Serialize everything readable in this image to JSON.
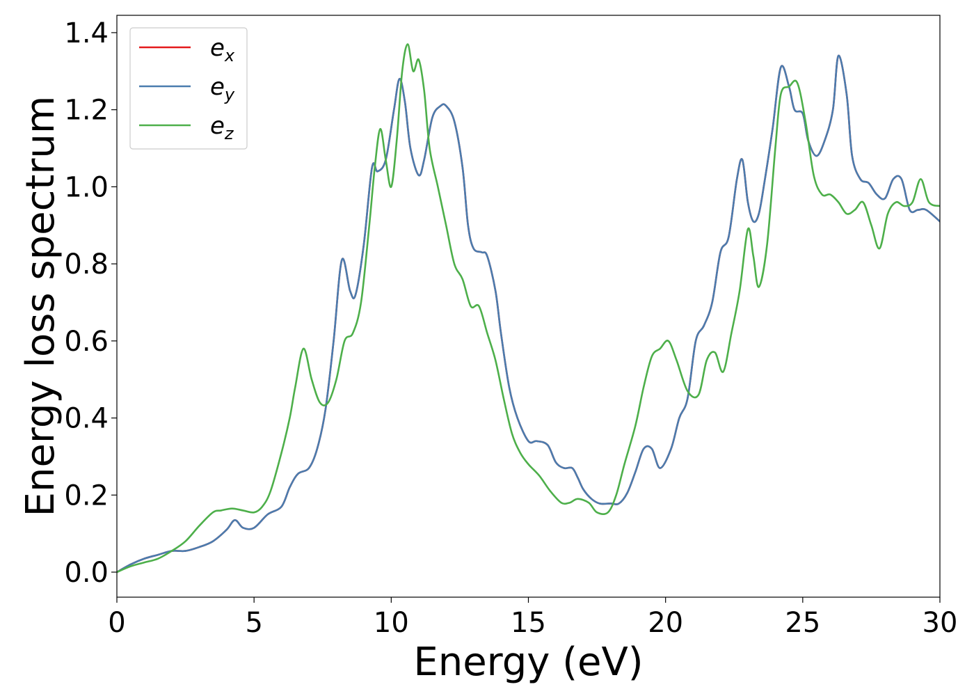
{
  "chart_data": {
    "type": "line",
    "title": "",
    "xlabel": "Energy (eV)",
    "ylabel": "Energy loss spectrum",
    "xlim": [
      0,
      30
    ],
    "ylim": [
      -0.065,
      1.445
    ],
    "xticks": [
      0,
      5,
      10,
      15,
      20,
      25,
      30
    ],
    "xtick_labels": [
      "0",
      "5",
      "10",
      "15",
      "20",
      "25",
      "30"
    ],
    "yticks": [
      0.0,
      0.2,
      0.4,
      0.6,
      0.8,
      1.0,
      1.2,
      1.4
    ],
    "ytick_labels": [
      "0.0",
      "0.2",
      "0.4",
      "0.6",
      "0.8",
      "1.0",
      "1.2",
      "1.4"
    ],
    "grid": false,
    "legend_position": "top-left",
    "series": [
      {
        "name": "e",
        "subscript": "x",
        "color": "#e41a1c",
        "x": [
          0,
          0.5,
          1,
          1.5,
          2,
          2.5,
          3,
          3.5,
          4,
          4.3,
          4.6,
          5,
          5.5,
          6,
          6.3,
          6.6,
          7,
          7.3,
          7.6,
          7.9,
          8.2,
          8.5,
          8.7,
          9,
          9.3,
          9.5,
          9.8,
          10.1,
          10.3,
          10.5,
          10.7,
          11,
          11.2,
          11.5,
          11.8,
          12,
          12.3,
          12.6,
          12.8,
          13,
          13.3,
          13.5,
          13.8,
          14,
          14.3,
          14.6,
          15,
          15.3,
          15.7,
          16,
          16.3,
          16.6,
          16.8,
          17,
          17.3,
          17.6,
          18,
          18.3,
          18.6,
          18.9,
          19.2,
          19.5,
          19.8,
          20.2,
          20.5,
          20.8,
          21.1,
          21.4,
          21.7,
          22,
          22.3,
          22.6,
          22.8,
          23,
          23.2,
          23.4,
          23.6,
          23.9,
          24.2,
          24.5,
          24.7,
          25,
          25.2,
          25.5,
          25.8,
          26.1,
          26.3,
          26.6,
          26.8,
          27.1,
          27.4,
          27.7,
          28,
          28.3,
          28.6,
          28.9,
          29.2,
          29.5,
          30
        ],
        "y": [
          0,
          0.02,
          0.035,
          0.045,
          0.055,
          0.055,
          0.065,
          0.08,
          0.11,
          0.135,
          0.115,
          0.115,
          0.15,
          0.17,
          0.22,
          0.255,
          0.27,
          0.32,
          0.42,
          0.6,
          0.81,
          0.73,
          0.72,
          0.85,
          1.05,
          1.04,
          1.07,
          1.2,
          1.28,
          1.22,
          1.1,
          1.03,
          1.07,
          1.18,
          1.21,
          1.21,
          1.17,
          1.05,
          0.9,
          0.84,
          0.83,
          0.82,
          0.73,
          0.62,
          0.48,
          0.4,
          0.34,
          0.34,
          0.33,
          0.285,
          0.27,
          0.27,
          0.245,
          0.215,
          0.19,
          0.178,
          0.178,
          0.178,
          0.205,
          0.26,
          0.32,
          0.32,
          0.27,
          0.32,
          0.4,
          0.45,
          0.6,
          0.64,
          0.7,
          0.83,
          0.87,
          1.02,
          1.07,
          0.96,
          0.91,
          0.93,
          1.01,
          1.15,
          1.31,
          1.26,
          1.2,
          1.19,
          1.12,
          1.08,
          1.12,
          1.2,
          1.34,
          1.24,
          1.08,
          1.02,
          1.01,
          0.98,
          0.97,
          1.02,
          1.02,
          0.94,
          0.94,
          0.94,
          0.91
        ]
      },
      {
        "name": "e",
        "subscript": "y",
        "color": "#4a7cae",
        "x": [
          0,
          0.5,
          1,
          1.5,
          2,
          2.5,
          3,
          3.5,
          4,
          4.3,
          4.6,
          5,
          5.5,
          6,
          6.3,
          6.6,
          7,
          7.3,
          7.6,
          7.9,
          8.2,
          8.5,
          8.7,
          9,
          9.3,
          9.5,
          9.8,
          10.1,
          10.3,
          10.5,
          10.7,
          11,
          11.2,
          11.5,
          11.8,
          12,
          12.3,
          12.6,
          12.8,
          13,
          13.3,
          13.5,
          13.8,
          14,
          14.3,
          14.6,
          15,
          15.3,
          15.7,
          16,
          16.3,
          16.6,
          16.8,
          17,
          17.3,
          17.6,
          18,
          18.3,
          18.6,
          18.9,
          19.2,
          19.5,
          19.8,
          20.2,
          20.5,
          20.8,
          21.1,
          21.4,
          21.7,
          22,
          22.3,
          22.6,
          22.8,
          23,
          23.2,
          23.4,
          23.6,
          23.9,
          24.2,
          24.5,
          24.7,
          25,
          25.2,
          25.5,
          25.8,
          26.1,
          26.3,
          26.6,
          26.8,
          27.1,
          27.4,
          27.7,
          28,
          28.3,
          28.6,
          28.9,
          29.2,
          29.5,
          30
        ],
        "y": [
          0,
          0.02,
          0.035,
          0.045,
          0.055,
          0.055,
          0.065,
          0.08,
          0.11,
          0.135,
          0.115,
          0.115,
          0.15,
          0.17,
          0.22,
          0.255,
          0.27,
          0.32,
          0.42,
          0.6,
          0.81,
          0.73,
          0.72,
          0.85,
          1.05,
          1.04,
          1.07,
          1.2,
          1.28,
          1.22,
          1.1,
          1.03,
          1.07,
          1.18,
          1.21,
          1.21,
          1.17,
          1.05,
          0.9,
          0.84,
          0.83,
          0.82,
          0.73,
          0.62,
          0.48,
          0.4,
          0.34,
          0.34,
          0.33,
          0.285,
          0.27,
          0.27,
          0.245,
          0.215,
          0.19,
          0.178,
          0.178,
          0.178,
          0.205,
          0.26,
          0.32,
          0.32,
          0.27,
          0.32,
          0.4,
          0.45,
          0.6,
          0.64,
          0.7,
          0.83,
          0.87,
          1.02,
          1.07,
          0.96,
          0.91,
          0.93,
          1.01,
          1.15,
          1.31,
          1.26,
          1.2,
          1.19,
          1.12,
          1.08,
          1.12,
          1.2,
          1.34,
          1.24,
          1.08,
          1.02,
          1.01,
          0.98,
          0.97,
          1.02,
          1.02,
          0.94,
          0.94,
          0.94,
          0.91
        ]
      },
      {
        "name": "e",
        "subscript": "z",
        "color": "#4daf4a",
        "x": [
          0,
          0.5,
          1,
          1.5,
          2,
          2.5,
          3,
          3.5,
          3.8,
          4.2,
          4.6,
          5,
          5.3,
          5.6,
          6,
          6.3,
          6.5,
          6.8,
          7.1,
          7.4,
          7.7,
          8,
          8.3,
          8.6,
          8.9,
          9.2,
          9.4,
          9.6,
          9.8,
          10,
          10.2,
          10.4,
          10.6,
          10.8,
          11,
          11.2,
          11.4,
          11.7,
          12,
          12.3,
          12.6,
          12.9,
          13.2,
          13.5,
          13.8,
          14.1,
          14.4,
          14.7,
          15,
          15.4,
          15.8,
          16.2,
          16.5,
          16.8,
          17.2,
          17.5,
          17.9,
          18.2,
          18.5,
          18.9,
          19.2,
          19.5,
          19.8,
          20.1,
          20.4,
          20.8,
          21.2,
          21.5,
          21.8,
          22.1,
          22.4,
          22.7,
          23,
          23.2,
          23.4,
          23.7,
          24,
          24.2,
          24.5,
          24.8,
          25.1,
          25.4,
          25.7,
          26,
          26.3,
          26.6,
          26.9,
          27.2,
          27.5,
          27.8,
          28.1,
          28.4,
          28.7,
          29,
          29.3,
          29.6,
          30
        ],
        "y": [
          0,
          0.015,
          0.025,
          0.035,
          0.055,
          0.08,
          0.12,
          0.155,
          0.16,
          0.165,
          0.16,
          0.155,
          0.17,
          0.21,
          0.31,
          0.4,
          0.48,
          0.58,
          0.5,
          0.44,
          0.44,
          0.5,
          0.6,
          0.62,
          0.7,
          0.9,
          1.05,
          1.15,
          1.07,
          1.0,
          1.12,
          1.3,
          1.37,
          1.3,
          1.33,
          1.25,
          1.1,
          1.0,
          0.9,
          0.8,
          0.76,
          0.69,
          0.69,
          0.62,
          0.55,
          0.45,
          0.36,
          0.31,
          0.28,
          0.25,
          0.21,
          0.18,
          0.18,
          0.19,
          0.18,
          0.155,
          0.155,
          0.2,
          0.28,
          0.38,
          0.48,
          0.56,
          0.58,
          0.6,
          0.55,
          0.47,
          0.46,
          0.55,
          0.57,
          0.52,
          0.62,
          0.73,
          0.89,
          0.82,
          0.74,
          0.85,
          1.1,
          1.24,
          1.26,
          1.27,
          1.17,
          1.03,
          0.98,
          0.98,
          0.96,
          0.93,
          0.94,
          0.96,
          0.9,
          0.84,
          0.93,
          0.96,
          0.95,
          0.96,
          1.02,
          0.96,
          0.95
        ]
      }
    ]
  }
}
